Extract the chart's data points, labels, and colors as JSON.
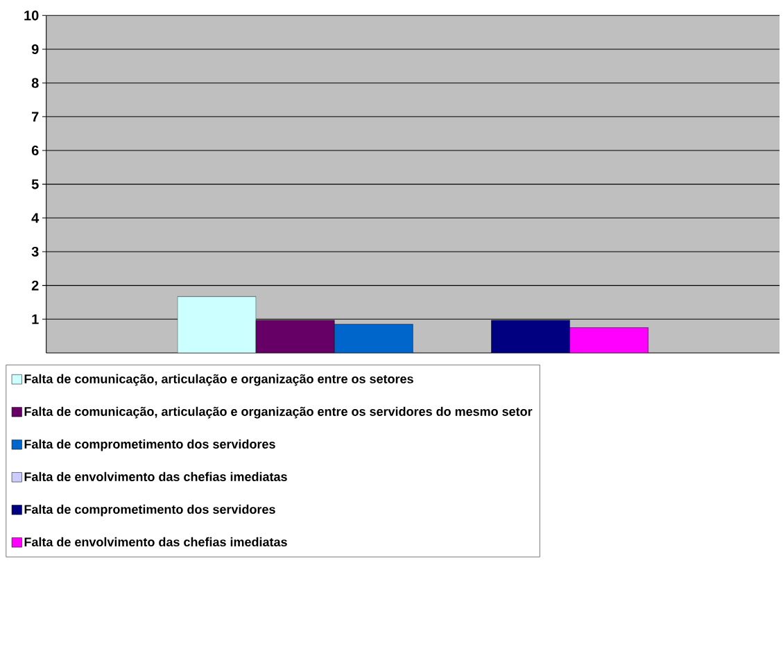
{
  "chart_data": {
    "type": "bar",
    "categories": [
      null
    ],
    "series": [
      {
        "name": "Falta de comunicação, articulação e organização entre os setores",
        "color": "#ccffff",
        "values": [
          1.67
        ]
      },
      {
        "name": "Falta de comunicação, articulação e organização entre os servidores do mesmo setor",
        "color": "#660066",
        "values": [
          0.97
        ]
      },
      {
        "name": "Falta de comprometimento dos servidores",
        "color": "#0066cc",
        "values": [
          0.85
        ]
      },
      {
        "name": "Falta de envolvimento das chefias imediatas",
        "color": "#ccccff",
        "values": [
          null
        ]
      },
      {
        "name": "Falta de comprometimento dos servidores",
        "color": "#000080",
        "values": [
          0.97
        ]
      },
      {
        "name": "Falta de envolvimento das chefias imediatas",
        "color": "#ff00ff",
        "values": [
          0.75
        ]
      }
    ],
    "ylim": [
      0,
      10
    ],
    "yticks": [
      1,
      2,
      3,
      4,
      5,
      6,
      7,
      8,
      9,
      10
    ],
    "grid": "y",
    "legend": "bottom"
  }
}
